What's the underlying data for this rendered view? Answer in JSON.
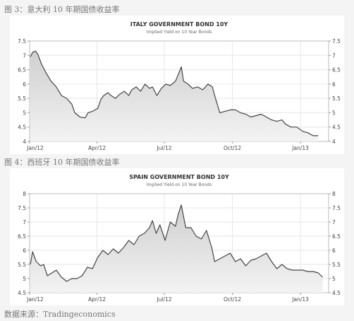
{
  "captions": {
    "fig3": "图 3：意大利 10 年期国债收益率",
    "fig4": "图 4：西班牙 10 年期国债收益率",
    "source": "数据来源：Tradingeconomics"
  },
  "colors": {
    "line": "#444444",
    "fill_top": "#cfcfcf",
    "fill_bottom": "#f3f3f3",
    "grid": "#e6e6e6"
  },
  "chart_data": [
    {
      "type": "area",
      "title": "ITALY GOVERNMENT BOND 10Y",
      "subtitle": "Implied Yield on 10 Year Bonds",
      "xlabel": "",
      "ylabel": "",
      "x_ticks": [
        "Jan/12",
        "Apr/12",
        "Jul/12",
        "Oct/12",
        "Jan/13"
      ],
      "x_tick_dates": [
        "2012-01-01",
        "2012-04-01",
        "2012-07-01",
        "2012-10-01",
        "2013-01-01"
      ],
      "y_ticks": [
        4,
        4.5,
        5,
        5.5,
        6,
        6.5,
        7,
        7.5
      ],
      "ylim": [
        4,
        7.5
      ],
      "grid": true,
      "series": [
        {
          "x": [
            "2012-01-02",
            "2012-01-05",
            "2012-01-09",
            "2012-01-12",
            "2012-01-17",
            "2012-01-23",
            "2012-01-30",
            "2012-02-06",
            "2012-02-13",
            "2012-02-20",
            "2012-02-27",
            "2012-03-02",
            "2012-03-09",
            "2012-03-16",
            "2012-03-20",
            "2012-03-26",
            "2012-04-02",
            "2012-04-06",
            "2012-04-10",
            "2012-04-16",
            "2012-04-20",
            "2012-04-26",
            "2012-05-02",
            "2012-05-08",
            "2012-05-14",
            "2012-05-18",
            "2012-05-24",
            "2012-05-30",
            "2012-06-05",
            "2012-06-11",
            "2012-06-15",
            "2012-06-21",
            "2012-06-27",
            "2012-07-03",
            "2012-07-09",
            "2012-07-16",
            "2012-07-20",
            "2012-07-24",
            "2012-07-27",
            "2012-08-02",
            "2012-08-08",
            "2012-08-15",
            "2012-08-22",
            "2012-08-29",
            "2012-09-04",
            "2012-09-07",
            "2012-09-14",
            "2012-09-21",
            "2012-09-28",
            "2012-10-05",
            "2012-10-12",
            "2012-10-19",
            "2012-10-26",
            "2012-11-02",
            "2012-11-09",
            "2012-11-16",
            "2012-11-23",
            "2012-11-30",
            "2012-12-07",
            "2012-12-12",
            "2012-12-19",
            "2012-12-27",
            "2013-01-04",
            "2013-01-11",
            "2013-01-18",
            "2013-01-25"
          ],
          "values": [
            6.95,
            7.1,
            7.15,
            7.05,
            6.7,
            6.4,
            6.1,
            5.9,
            5.6,
            5.5,
            5.3,
            5.0,
            4.85,
            4.82,
            5.0,
            5.05,
            5.15,
            5.45,
            5.6,
            5.7,
            5.6,
            5.5,
            5.65,
            5.75,
            5.6,
            5.8,
            5.9,
            5.75,
            6.0,
            5.85,
            5.9,
            5.6,
            5.85,
            6.0,
            5.95,
            6.1,
            6.35,
            6.6,
            6.1,
            6.0,
            5.85,
            5.9,
            5.8,
            6.0,
            5.9,
            5.6,
            5.0,
            5.05,
            5.1,
            5.1,
            5.0,
            4.95,
            4.85,
            4.9,
            4.95,
            4.85,
            4.75,
            4.7,
            4.75,
            4.6,
            4.5,
            4.5,
            4.35,
            4.3,
            4.2,
            4.2
          ]
        }
      ]
    },
    {
      "type": "area",
      "title": "SPAIN GOVERNMENT BOND 10Y",
      "subtitle": "Implied Yield on 10 Year Bonds",
      "xlabel": "",
      "ylabel": "",
      "x_ticks": [
        "Jan/12",
        "Apr/12",
        "Jul/12",
        "Oct/12",
        "Jan/13"
      ],
      "x_tick_dates": [
        "2012-01-01",
        "2012-04-01",
        "2012-07-01",
        "2012-10-01",
        "2013-01-01"
      ],
      "y_ticks": [
        4.5,
        5,
        5.5,
        6,
        6.5,
        7,
        7.5,
        8
      ],
      "ylim": [
        4.5,
        8
      ],
      "grid": true,
      "series": [
        {
          "x": [
            "2012-01-02",
            "2012-01-05",
            "2012-01-10",
            "2012-01-16",
            "2012-01-20",
            "2012-01-25",
            "2012-01-31",
            "2012-02-06",
            "2012-02-13",
            "2012-02-20",
            "2012-02-27",
            "2012-03-05",
            "2012-03-12",
            "2012-03-19",
            "2012-03-26",
            "2012-04-02",
            "2012-04-09",
            "2012-04-16",
            "2012-04-23",
            "2012-04-30",
            "2012-05-07",
            "2012-05-14",
            "2012-05-21",
            "2012-05-28",
            "2012-06-04",
            "2012-06-11",
            "2012-06-15",
            "2012-06-20",
            "2012-06-25",
            "2012-07-02",
            "2012-07-09",
            "2012-07-16",
            "2012-07-20",
            "2012-07-24",
            "2012-07-30",
            "2012-08-06",
            "2012-08-13",
            "2012-08-20",
            "2012-08-27",
            "2012-09-03",
            "2012-09-07",
            "2012-09-14",
            "2012-09-21",
            "2012-09-28",
            "2012-10-05",
            "2012-10-12",
            "2012-10-19",
            "2012-10-26",
            "2012-11-02",
            "2012-11-09",
            "2012-11-16",
            "2012-11-23",
            "2012-11-30",
            "2012-12-07",
            "2012-12-14",
            "2012-12-21",
            "2012-12-28",
            "2013-01-04",
            "2013-01-11",
            "2013-01-18",
            "2013-01-25",
            "2013-01-31"
          ],
          "values": [
            5.5,
            5.95,
            5.6,
            5.45,
            5.5,
            5.1,
            5.2,
            5.3,
            5.05,
            4.9,
            5.0,
            5.0,
            5.1,
            5.4,
            5.35,
            5.75,
            6.0,
            5.85,
            6.05,
            5.9,
            6.1,
            6.35,
            6.2,
            6.5,
            6.6,
            6.8,
            7.05,
            6.6,
            6.9,
            6.35,
            7.0,
            6.85,
            7.3,
            7.6,
            6.8,
            6.8,
            6.5,
            6.4,
            6.7,
            6.1,
            5.6,
            5.7,
            5.8,
            5.9,
            5.6,
            5.7,
            5.45,
            5.65,
            5.7,
            5.8,
            5.9,
            5.6,
            5.35,
            5.5,
            5.35,
            5.3,
            5.3,
            5.3,
            5.25,
            5.25,
            5.2,
            5.05
          ]
        }
      ]
    }
  ]
}
